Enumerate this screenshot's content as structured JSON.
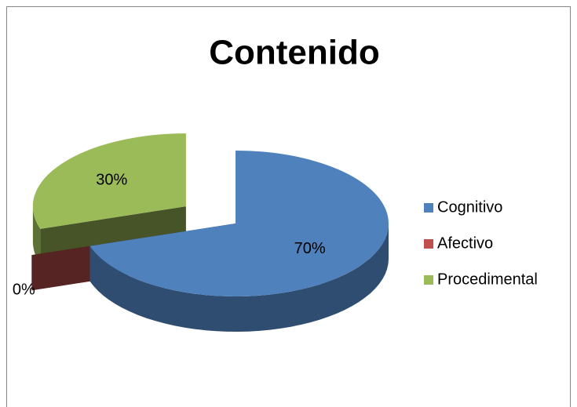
{
  "chart_data": {
    "type": "pie3d",
    "title": "Contenido",
    "categories": [
      "Cognitivo",
      "Afectivo",
      "Procedimental"
    ],
    "values": [
      70,
      0,
      30
    ],
    "value_labels": [
      "70%",
      "0%",
      "30%"
    ],
    "colors": [
      "#4f81bd",
      "#c0504d",
      "#9bbb59"
    ],
    "legend": "right"
  }
}
